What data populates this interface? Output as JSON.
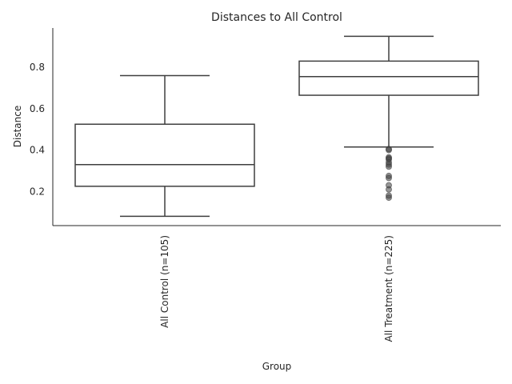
{
  "chart_data": {
    "type": "box",
    "title": "Distances to All Control",
    "xlabel": "Group",
    "ylabel": "Distance",
    "ylim": [
      0.035,
      0.99
    ],
    "yticks": [
      0.2,
      0.4,
      0.6,
      0.8
    ],
    "categories": [
      "All Control (n=105)",
      "All Treatment (n=225)"
    ],
    "boxes": [
      {
        "category": "All Control (n=105)",
        "whisker_low": 0.08,
        "q1": 0.225,
        "median": 0.33,
        "q3": 0.525,
        "whisker_high": 0.76,
        "outliers": []
      },
      {
        "category": "All Treatment (n=225)",
        "whisker_low": 0.415,
        "q1": 0.665,
        "median": 0.755,
        "q3": 0.83,
        "whisker_high": 0.95,
        "outliers": [
          0.405,
          0.4,
          0.365,
          0.36,
          0.355,
          0.34,
          0.33,
          0.32,
          0.275,
          0.265,
          0.23,
          0.21,
          0.18,
          0.17
        ]
      }
    ],
    "grid": false,
    "legend": "none"
  }
}
